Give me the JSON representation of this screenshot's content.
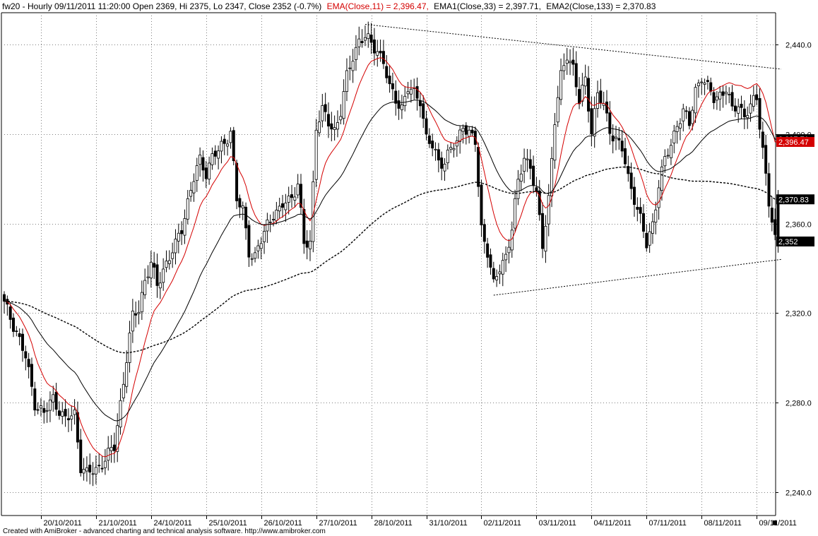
{
  "header": {
    "text": "fw20 - Hourly 09/11/2011 11:20:00 Open 2369, Hi 2375, Lo 2347, Close 2352 (-0.7%)",
    "ema_label": "EMA(Close,11) = 2,396.47,",
    "ema1_label": "EMA1(Close,33) = 2,397.71,",
    "ema2_label": "EMA2(Close,133) = 2,370.83"
  },
  "credit": "Created with AmiBroker - advanced charting and technical analysis software. http://www.amibroker.com",
  "colors": {
    "background": "#ffffff",
    "grid": "#7f7f7f",
    "ema_short": "#d40000",
    "ema_medium": "#000000",
    "ema_long": "#000000",
    "up_candle": "#ffffff",
    "down_candle": "#000000",
    "tag_dark": "#000000",
    "tag_red": "#d40000"
  },
  "chart_data": {
    "type": "candlestick",
    "symbol": "fw20",
    "interval": "Hourly",
    "grid": true,
    "y_ticks": [
      "2,440.0",
      "2,400.0",
      "2,360.0",
      "2,320.0",
      "2,280.0",
      "2,240.0"
    ],
    "y_tick_values": [
      2440,
      2400,
      2360,
      2320,
      2280,
      2240
    ],
    "ylim": [
      2230,
      2453
    ],
    "x_ticks": [
      "20/10/2011",
      "21/10/2011",
      "24/10/2011",
      "25/10/2011",
      "26/10/2011",
      "27/10/2011",
      "28/10/2011",
      "31/10/2011",
      "02/11/2011",
      "03/11/2011",
      "04/11/2011",
      "07/11/2011",
      "08/11/2011",
      "09/11/2011"
    ],
    "x_tick_bar_index": [
      12,
      30,
      48,
      66,
      84,
      102,
      120,
      138,
      156,
      174,
      192,
      210,
      228,
      246
    ],
    "bar_count": 254,
    "price_tags": [
      {
        "label": "2,397.71",
        "value": 2397.71,
        "style": "dark"
      },
      {
        "label": "2,396.47",
        "value": 2396.47,
        "style": "red"
      },
      {
        "label": "2,370.83",
        "value": 2370.83,
        "style": "dark"
      },
      {
        "label": "2,352",
        "value": 2352,
        "style": "dark"
      }
    ],
    "trendlines": [
      {
        "from": {
          "bar": 118,
          "price": 2449
        },
        "to": {
          "bar": 254,
          "price": 2429
        },
        "style": "dotted"
      },
      {
        "from": {
          "bar": 160,
          "price": 2328
        },
        "to": {
          "bar": 254,
          "price": 2344
        },
        "style": "dotted"
      }
    ],
    "price_anchors": [
      [
        0,
        2324
      ],
      [
        4,
        2312
      ],
      [
        7,
        2300
      ],
      [
        10,
        2280
      ],
      [
        13,
        2275
      ],
      [
        16,
        2282
      ],
      [
        20,
        2272
      ],
      [
        23,
        2275
      ],
      [
        25,
        2252
      ],
      [
        27,
        2248
      ],
      [
        30,
        2250
      ],
      [
        33,
        2255
      ],
      [
        36,
        2260
      ],
      [
        38,
        2280
      ],
      [
        40,
        2300
      ],
      [
        42,
        2318
      ],
      [
        44,
        2322
      ],
      [
        46,
        2335
      ],
      [
        48,
        2342
      ],
      [
        50,
        2332
      ],
      [
        52,
        2340
      ],
      [
        54,
        2345
      ],
      [
        56,
        2350
      ],
      [
        58,
        2358
      ],
      [
        60,
        2370
      ],
      [
        62,
        2380
      ],
      [
        64,
        2388
      ],
      [
        66,
        2383
      ],
      [
        68,
        2390
      ],
      [
        70,
        2392
      ],
      [
        72,
        2396
      ],
      [
        74,
        2402
      ],
      [
        76,
        2370
      ],
      [
        78,
        2366
      ],
      [
        80,
        2348
      ],
      [
        82,
        2345
      ],
      [
        84,
        2352
      ],
      [
        86,
        2360
      ],
      [
        88,
        2365
      ],
      [
        90,
        2365
      ],
      [
        92,
        2370
      ],
      [
        94,
        2372
      ],
      [
        96,
        2378
      ],
      [
        98,
        2350
      ],
      [
        100,
        2352
      ],
      [
        102,
        2404
      ],
      [
        104,
        2410
      ],
      [
        106,
        2405
      ],
      [
        108,
        2402
      ],
      [
        110,
        2410
      ],
      [
        112,
        2425
      ],
      [
        114,
        2435
      ],
      [
        116,
        2442
      ],
      [
        118,
        2443
      ],
      [
        120,
        2440
      ],
      [
        122,
        2438
      ],
      [
        124,
        2432
      ],
      [
        126,
        2420
      ],
      [
        128,
        2416
      ],
      [
        130,
        2412
      ],
      [
        132,
        2420
      ],
      [
        134,
        2418
      ],
      [
        136,
        2416
      ],
      [
        138,
        2398
      ],
      [
        140,
        2394
      ],
      [
        142,
        2388
      ],
      [
        144,
        2388
      ],
      [
        146,
        2393
      ],
      [
        148,
        2396
      ],
      [
        150,
        2405
      ],
      [
        152,
        2400
      ],
      [
        154,
        2396
      ],
      [
        156,
        2358
      ],
      [
        158,
        2348
      ],
      [
        160,
        2332
      ],
      [
        162,
        2340
      ],
      [
        164,
        2346
      ],
      [
        166,
        2358
      ],
      [
        168,
        2378
      ],
      [
        170,
        2390
      ],
      [
        172,
        2386
      ],
      [
        174,
        2372
      ],
      [
        176,
        2350
      ],
      [
        178,
        2372
      ],
      [
        180,
        2406
      ],
      [
        182,
        2425
      ],
      [
        184,
        2436
      ],
      [
        186,
        2430
      ],
      [
        188,
        2414
      ],
      [
        190,
        2424
      ],
      [
        192,
        2402
      ],
      [
        194,
        2418
      ],
      [
        196,
        2412
      ],
      [
        198,
        2402
      ],
      [
        200,
        2398
      ],
      [
        202,
        2393
      ],
      [
        204,
        2380
      ],
      [
        206,
        2372
      ],
      [
        208,
        2362
      ],
      [
        210,
        2350
      ],
      [
        212,
        2360
      ],
      [
        214,
        2378
      ],
      [
        216,
        2388
      ],
      [
        218,
        2395
      ],
      [
        220,
        2405
      ],
      [
        222,
        2410
      ],
      [
        224,
        2404
      ],
      [
        226,
        2420
      ],
      [
        228,
        2426
      ],
      [
        230,
        2420
      ],
      [
        232,
        2416
      ],
      [
        234,
        2418
      ],
      [
        236,
        2420
      ],
      [
        238,
        2410
      ],
      [
        240,
        2414
      ],
      [
        242,
        2408
      ],
      [
        244,
        2412
      ],
      [
        246,
        2416
      ],
      [
        248,
        2394
      ],
      [
        250,
        2369
      ],
      [
        252,
        2352
      ]
    ],
    "last_bar": {
      "open": 2369,
      "high": 2375,
      "low": 2347,
      "close": 2352
    },
    "series": [
      {
        "name": "EMA(Close,11)",
        "period": 11,
        "color": "#d40000",
        "style": "solid",
        "last": 2396.47
      },
      {
        "name": "EMA1(Close,33)",
        "period": 33,
        "color": "#000000",
        "style": "solid",
        "last": 2397.71
      },
      {
        "name": "EMA2(Close,133)",
        "period": 133,
        "color": "#000000",
        "style": "dashed",
        "last": 2370.83
      }
    ]
  }
}
